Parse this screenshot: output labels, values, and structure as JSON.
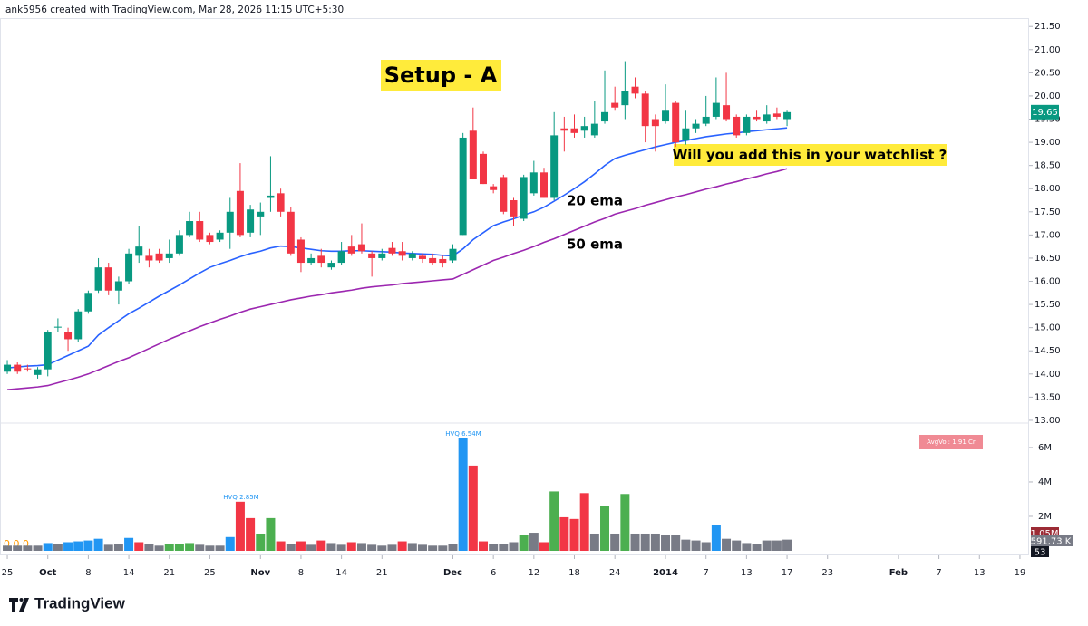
{
  "header": "ank5956 created with TradingView.com, Mar 28, 2026 11:15 UTC+5:30",
  "footer": "TradingView",
  "chart_data": {
    "type": "candlestick",
    "up_color": "#089981",
    "down_color": "#f23645",
    "candles": [
      [
        14.05,
        14.3,
        14.0,
        14.2
      ],
      [
        14.2,
        14.25,
        14.0,
        14.05
      ],
      [
        14.12,
        14.2,
        14.05,
        14.1
      ],
      [
        13.98,
        14.15,
        13.9,
        14.1
      ],
      [
        14.1,
        14.95,
        13.95,
        14.9
      ],
      [
        15.0,
        15.2,
        14.9,
        15.02
      ],
      [
        14.9,
        15.0,
        14.5,
        14.75
      ],
      [
        14.75,
        15.4,
        14.7,
        15.35
      ],
      [
        15.35,
        15.8,
        15.3,
        15.75
      ],
      [
        15.8,
        16.5,
        15.75,
        16.3
      ],
      [
        16.3,
        16.4,
        15.7,
        15.8
      ],
      [
        15.8,
        16.1,
        15.5,
        16.0
      ],
      [
        16.0,
        16.7,
        15.95,
        16.6
      ],
      [
        16.55,
        17.2,
        16.4,
        16.75
      ],
      [
        16.55,
        16.7,
        16.3,
        16.45
      ],
      [
        16.6,
        16.7,
        16.4,
        16.45
      ],
      [
        16.5,
        16.9,
        16.4,
        16.6
      ],
      [
        16.6,
        17.1,
        16.55,
        17.0
      ],
      [
        17.0,
        17.5,
        16.95,
        17.3
      ],
      [
        17.3,
        17.5,
        16.85,
        16.9
      ],
      [
        17.0,
        17.05,
        16.8,
        16.85
      ],
      [
        16.9,
        17.1,
        16.85,
        17.05
      ],
      [
        17.05,
        17.8,
        16.7,
        17.5
      ],
      [
        17.95,
        18.55,
        16.95,
        17.0
      ],
      [
        17.05,
        17.65,
        16.95,
        17.55
      ],
      [
        17.4,
        17.7,
        17.0,
        17.5
      ],
      [
        17.8,
        18.7,
        17.5,
        17.85
      ],
      [
        17.9,
        18.0,
        17.4,
        17.5
      ],
      [
        17.5,
        17.6,
        16.55,
        16.6
      ],
      [
        16.9,
        16.95,
        16.2,
        16.4
      ],
      [
        16.4,
        16.6,
        16.35,
        16.5
      ],
      [
        16.55,
        16.7,
        16.3,
        16.4
      ],
      [
        16.3,
        16.45,
        16.25,
        16.4
      ],
      [
        16.4,
        16.85,
        16.35,
        16.65
      ],
      [
        16.75,
        17.0,
        16.55,
        16.6
      ],
      [
        16.8,
        17.25,
        16.6,
        16.65
      ],
      [
        16.6,
        16.65,
        16.1,
        16.5
      ],
      [
        16.5,
        16.7,
        16.45,
        16.6
      ],
      [
        16.72,
        16.85,
        16.55,
        16.6
      ],
      [
        16.65,
        16.85,
        16.45,
        16.55
      ],
      [
        16.5,
        16.65,
        16.45,
        16.6
      ],
      [
        16.55,
        16.6,
        16.4,
        16.48
      ],
      [
        16.5,
        16.6,
        16.35,
        16.4
      ],
      [
        16.48,
        16.55,
        16.3,
        16.4
      ],
      [
        16.45,
        16.8,
        16.4,
        16.7
      ],
      [
        17.0,
        19.2,
        17.0,
        19.1
      ],
      [
        19.25,
        19.75,
        18.2,
        18.2
      ],
      [
        18.75,
        18.8,
        18.1,
        18.1
      ],
      [
        18.05,
        18.1,
        17.9,
        17.97
      ],
      [
        18.25,
        18.3,
        17.45,
        17.5
      ],
      [
        17.75,
        17.8,
        17.2,
        17.4
      ],
      [
        17.35,
        18.3,
        17.3,
        18.25
      ],
      [
        17.9,
        18.6,
        17.85,
        18.35
      ],
      [
        18.35,
        18.45,
        17.8,
        17.8
      ],
      [
        17.8,
        19.65,
        17.75,
        19.15
      ],
      [
        19.3,
        19.55,
        18.8,
        19.25
      ],
      [
        19.3,
        19.6,
        19.1,
        19.2
      ],
      [
        19.25,
        19.55,
        19.1,
        19.35
      ],
      [
        19.15,
        19.9,
        19.1,
        19.4
      ],
      [
        19.45,
        20.55,
        19.4,
        19.65
      ],
      [
        19.85,
        20.2,
        19.7,
        19.75
      ],
      [
        19.8,
        20.75,
        19.5,
        20.1
      ],
      [
        20.2,
        20.4,
        19.95,
        20.05
      ],
      [
        20.05,
        20.1,
        19.0,
        19.35
      ],
      [
        19.5,
        19.6,
        18.8,
        19.35
      ],
      [
        19.45,
        20.25,
        19.4,
        19.7
      ],
      [
        19.85,
        19.9,
        18.9,
        19.0
      ],
      [
        19.05,
        19.7,
        18.95,
        19.3
      ],
      [
        19.3,
        19.5,
        19.2,
        19.4
      ],
      [
        19.4,
        20.0,
        19.35,
        19.55
      ],
      [
        19.55,
        20.4,
        19.5,
        19.85
      ],
      [
        19.8,
        20.5,
        19.45,
        19.5
      ],
      [
        19.55,
        19.6,
        19.1,
        19.15
      ],
      [
        19.2,
        19.6,
        19.15,
        19.55
      ],
      [
        19.55,
        19.7,
        19.45,
        19.5
      ],
      [
        19.45,
        19.8,
        19.4,
        19.6
      ],
      [
        19.62,
        19.75,
        19.5,
        19.55
      ],
      [
        19.5,
        19.7,
        19.35,
        19.65
      ]
    ],
    "series": [
      {
        "name": "20 ema",
        "color": "#2962ff",
        "values": [
          14.13,
          14.15,
          14.17,
          14.18,
          14.2,
          14.3,
          14.4,
          14.5,
          14.6,
          14.84,
          15.0,
          15.15,
          15.3,
          15.42,
          15.55,
          15.68,
          15.8,
          15.92,
          16.05,
          16.18,
          16.3,
          16.38,
          16.45,
          16.53,
          16.6,
          16.65,
          16.72,
          16.76,
          16.75,
          16.72,
          16.69,
          16.66,
          16.65,
          16.65,
          16.66,
          16.66,
          16.65,
          16.64,
          16.63,
          16.61,
          16.6,
          16.59,
          16.58,
          16.56,
          16.55,
          16.7,
          16.9,
          17.05,
          17.2,
          17.28,
          17.35,
          17.43,
          17.5,
          17.6,
          17.73,
          17.86,
          18.0,
          18.15,
          18.32,
          18.5,
          18.65,
          18.72,
          18.78,
          18.84,
          18.9,
          18.95,
          19.0,
          19.04,
          19.08,
          19.12,
          19.15,
          19.18,
          19.2,
          19.23,
          19.25,
          19.27,
          19.29,
          19.31
        ]
      },
      {
        "name": "50 ema",
        "color": "#9c27b0",
        "values": [
          13.66,
          13.68,
          13.7,
          13.72,
          13.75,
          13.81,
          13.87,
          13.93,
          14.0,
          14.09,
          14.18,
          14.27,
          14.35,
          14.45,
          14.55,
          14.65,
          14.75,
          14.84,
          14.93,
          15.02,
          15.1,
          15.18,
          15.25,
          15.33,
          15.4,
          15.45,
          15.5,
          15.55,
          15.6,
          15.64,
          15.68,
          15.71,
          15.75,
          15.78,
          15.81,
          15.85,
          15.88,
          15.9,
          15.92,
          15.95,
          15.97,
          15.99,
          16.01,
          16.03,
          16.05,
          16.15,
          16.25,
          16.35,
          16.45,
          16.52,
          16.6,
          16.67,
          16.75,
          16.84,
          16.92,
          17.01,
          17.1,
          17.19,
          17.28,
          17.36,
          17.45,
          17.51,
          17.57,
          17.64,
          17.7,
          17.76,
          17.82,
          17.87,
          17.93,
          17.99,
          18.04,
          18.1,
          18.15,
          18.21,
          18.26,
          18.32,
          18.37,
          18.43
        ]
      }
    ],
    "ylim": [
      12.96,
      21.68
    ],
    "yticks": [
      {
        "value": 13,
        "label": "13.00"
      },
      {
        "value": 13.5,
        "label": "13.50"
      },
      {
        "value": 14,
        "label": "14.00"
      },
      {
        "value": 14.5,
        "label": "14.50"
      },
      {
        "value": 15,
        "label": "15.00"
      },
      {
        "value": 15.5,
        "label": "15.50"
      },
      {
        "value": 16,
        "label": "16.00"
      },
      {
        "value": 16.5,
        "label": "16.50"
      },
      {
        "value": 17,
        "label": "17.00"
      },
      {
        "value": 17.5,
        "label": "17.50"
      },
      {
        "value": 18,
        "label": "18.00"
      },
      {
        "value": 18.5,
        "label": "18.50"
      },
      {
        "value": 19,
        "label": "19.00"
      },
      {
        "value": 19.5,
        "label": "19.50"
      },
      {
        "value": 20,
        "label": "20.00"
      },
      {
        "value": 20.5,
        "label": "20.50"
      },
      {
        "value": 21,
        "label": "21.00"
      },
      {
        "value": 21.5,
        "label": "21.50"
      }
    ],
    "xlim": [
      -0.72,
      100.9
    ],
    "xticks": [
      {
        "value": 0,
        "label": "25"
      },
      {
        "value": 4,
        "label": "Oct"
      },
      {
        "value": 8,
        "label": "8"
      },
      {
        "value": 12,
        "label": "14"
      },
      {
        "value": 16,
        "label": "21"
      },
      {
        "value": 20,
        "label": "25"
      },
      {
        "value": 25,
        "label": "Nov"
      },
      {
        "value": 29,
        "label": "8"
      },
      {
        "value": 33,
        "label": "14"
      },
      {
        "value": 37,
        "label": "21"
      },
      {
        "value": 44,
        "label": "Dec"
      },
      {
        "value": 48,
        "label": "6"
      },
      {
        "value": 52,
        "label": "12"
      },
      {
        "value": 56,
        "label": "18"
      },
      {
        "value": 60,
        "label": "24"
      },
      {
        "value": 65,
        "label": "2014"
      },
      {
        "value": 69,
        "label": "7"
      },
      {
        "value": 73,
        "label": "13"
      },
      {
        "value": 77,
        "label": "17"
      },
      {
        "value": 81,
        "label": "23"
      },
      {
        "value": 88,
        "label": "Feb"
      },
      {
        "value": 92,
        "label": "7"
      },
      {
        "value": 96,
        "label": "13"
      },
      {
        "value": 100,
        "label": "19"
      }
    ],
    "annotations": {
      "setup": "Setup - A",
      "question": "Will you add this in your watchlist ?"
    },
    "volume": {
      "values": [
        0.3,
        0.3,
        0.3,
        0.3,
        0.45,
        0.4,
        0.5,
        0.55,
        0.6,
        0.7,
        0.35,
        0.4,
        0.75,
        0.5,
        0.4,
        0.3,
        0.4,
        0.4,
        0.45,
        0.35,
        0.3,
        0.3,
        0.8,
        2.85,
        1.9,
        1.0,
        1.9,
        0.55,
        0.4,
        0.55,
        0.35,
        0.6,
        0.45,
        0.35,
        0.5,
        0.45,
        0.35,
        0.3,
        0.35,
        0.55,
        0.45,
        0.35,
        0.3,
        0.3,
        0.4,
        6.54,
        4.95,
        0.55,
        0.4,
        0.4,
        0.5,
        0.9,
        1.05,
        0.5,
        3.45,
        1.95,
        1.85,
        3.35,
        1.0,
        2.6,
        1.0,
        3.3,
        1.0,
        1.0,
        1.0,
        0.9,
        0.9,
        0.65,
        0.6,
        0.5,
        1.5,
        0.7,
        0.6,
        0.45,
        0.4,
        0.6,
        0.6,
        0.65
      ],
      "colors": [
        "#787b86",
        "#787b86",
        "#787b86",
        "#787b86",
        "#2196f3",
        "#787b86",
        "#2196f3",
        "#2196f3",
        "#2196f3",
        "#2196f3",
        "#787b86",
        "#787b86",
        "#2196f3",
        "#f23645",
        "#787b86",
        "#787b86",
        "#4caf50",
        "#4caf50",
        "#4caf50",
        "#787b86",
        "#787b86",
        "#787b86",
        "#2196f3",
        "#f23645",
        "#f23645",
        "#4caf50",
        "#4caf50",
        "#f23645",
        "#787b86",
        "#f23645",
        "#787b86",
        "#f23645",
        "#787b86",
        "#787b86",
        "#f23645",
        "#787b86",
        "#787b86",
        "#787b86",
        "#787b86",
        "#f23645",
        "#787b86",
        "#787b86",
        "#787b86",
        "#787b86",
        "#787b86",
        "#2196f3",
        "#f23645",
        "#f23645",
        "#787b86",
        "#787b86",
        "#787b86",
        "#4caf50",
        "#787b86",
        "#f23645",
        "#4caf50",
        "#f23645",
        "#f23645",
        "#f23645",
        "#787b86",
        "#4caf50",
        "#787b86",
        "#4caf50",
        "#787b86",
        "#787b86",
        "#787b86",
        "#787b86",
        "#787b86",
        "#787b86",
        "#787b86",
        "#787b86",
        "#2196f3",
        "#787b86",
        "#787b86",
        "#787b86",
        "#787b86",
        "#787b86",
        "#787b86",
        "#787b86"
      ],
      "ylim": [
        0,
        7.26
      ],
      "yticks": [
        {
          "value": 2,
          "label": "2M"
        },
        {
          "value": 4,
          "label": "4M"
        },
        {
          "value": 6,
          "label": "6M"
        }
      ],
      "hvq_labels": [
        "HVQ 2.85M",
        "HVQ 6.54M"
      ],
      "avg_label": "AvgVol: 1.91 Cr",
      "readouts": [
        "1.05M",
        "591.73 K",
        "53"
      ],
      "legend": "0 0 0"
    }
  }
}
